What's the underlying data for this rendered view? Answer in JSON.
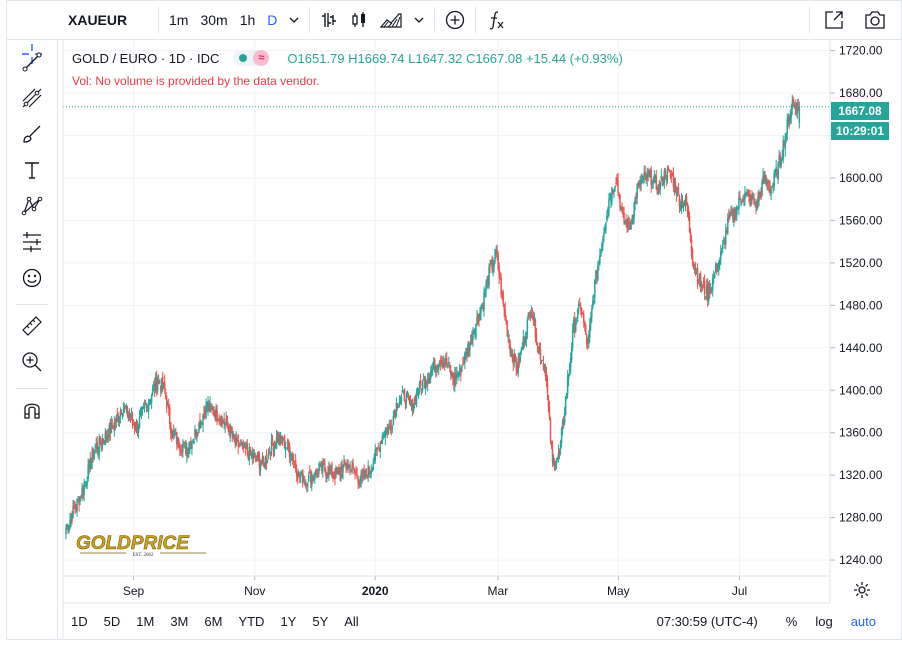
{
  "topbar": {
    "symbol": "XAUEUR",
    "intervals": [
      "1m",
      "30m",
      "1h",
      "D"
    ],
    "active_interval": "D",
    "fx_label": "fx"
  },
  "legend": {
    "title": "GOLD / EURO · 1D · IDC",
    "ohlc": "O1651.79  H1669.74  L1647.32  C1667.08  +15.44 (+0.93%)",
    "approx_badge": "≈",
    "vol_note": "Vol: No volume is provided by the data vendor."
  },
  "price_labels": {
    "last_price": "1667.08",
    "countdown": "10:29:01"
  },
  "logo": {
    "text": "GOLDPRICE",
    "sub": "EST. 2002"
  },
  "bottombar": {
    "ranges": [
      "1D",
      "5D",
      "1M",
      "3M",
      "6M",
      "YTD",
      "1Y",
      "5Y",
      "All"
    ],
    "time": "07:30:59 (UTC-4)",
    "percent": "%",
    "log": "log",
    "auto": "auto"
  },
  "colors": {
    "up": "#26a69a",
    "down": "#ef5350",
    "accent": "#2962ff",
    "grid": "#f0f3fa"
  },
  "chart_data": {
    "type": "candlestick",
    "title": "GOLD / EURO · 1D · IDC",
    "ylim": [
      1225,
      1730
    ],
    "y_ticks": [
      1240,
      1280,
      1320,
      1360,
      1400,
      1440,
      1480,
      1520,
      1560,
      1600,
      1640,
      1680,
      1720
    ],
    "y_tick_labels": [
      "1240.00",
      "1280.00",
      "1320.00",
      "1360.00",
      "1400.00",
      "1440.00",
      "1480.00",
      "1520.00",
      "1560.00",
      "1600.00",
      "1640.00",
      "1680.00",
      "1720.00"
    ],
    "x_labels": [
      "Sep",
      "Nov",
      "2020",
      "Mar",
      "May",
      "Jul"
    ],
    "x_label_positions": [
      0.092,
      0.25,
      0.407,
      0.567,
      0.724,
      0.882
    ],
    "last_price": 1667.08,
    "series": [
      {
        "name": "XAUEUR",
        "x_start": "2019-08-01",
        "x_end": "2020-07-21",
        "close": [
          1270,
          1285,
          1300,
          1320,
          1345,
          1350,
          1360,
          1370,
          1385,
          1375,
          1365,
          1380,
          1395,
          1410,
          1400,
          1360,
          1350,
          1345,
          1355,
          1370,
          1385,
          1380,
          1375,
          1365,
          1350,
          1345,
          1340,
          1335,
          1330,
          1345,
          1355,
          1350,
          1340,
          1320,
          1315,
          1320,
          1325,
          1325,
          1320,
          1325,
          1330,
          1320,
          1315,
          1325,
          1340,
          1360,
          1365,
          1390,
          1395,
          1385,
          1400,
          1410,
          1420,
          1430,
          1425,
          1410,
          1420,
          1440,
          1460,
          1480,
          1510,
          1530,
          1480,
          1440,
          1420,
          1450,
          1480,
          1440,
          1420,
          1330,
          1340,
          1400,
          1460,
          1480,
          1440,
          1500,
          1540,
          1580,
          1600,
          1560,
          1555,
          1590,
          1600,
          1600,
          1590,
          1605,
          1600,
          1580,
          1575,
          1520,
          1500,
          1490,
          1510,
          1530,
          1560,
          1570,
          1585,
          1580,
          1575,
          1600,
          1590,
          1610,
          1640,
          1670,
          1667
        ]
      }
    ]
  }
}
